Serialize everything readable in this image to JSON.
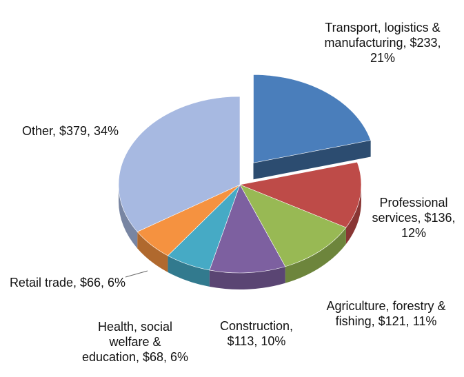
{
  "chart_data": {
    "type": "pie3d",
    "values": [
      233,
      136,
      121,
      113,
      68,
      66,
      379
    ],
    "value_labels": [
      "Transport, logistics & manufacturing, $233, 21%",
      "Professional services, $136, 12%",
      "Agriculture, forestry & fishing, $121, 11%",
      "Construction, $113, 10%",
      "Health, social welfare & education, $68, 6%",
      "Retail trade, $66, 6%",
      "Other, $379, 34%"
    ],
    "colors": [
      "#4a7ebb",
      "#be4b48",
      "#98b954",
      "#7d60a0",
      "#46aac5",
      "#f59240",
      "#a7b9e1"
    ],
    "exploded": [
      0
    ]
  }
}
